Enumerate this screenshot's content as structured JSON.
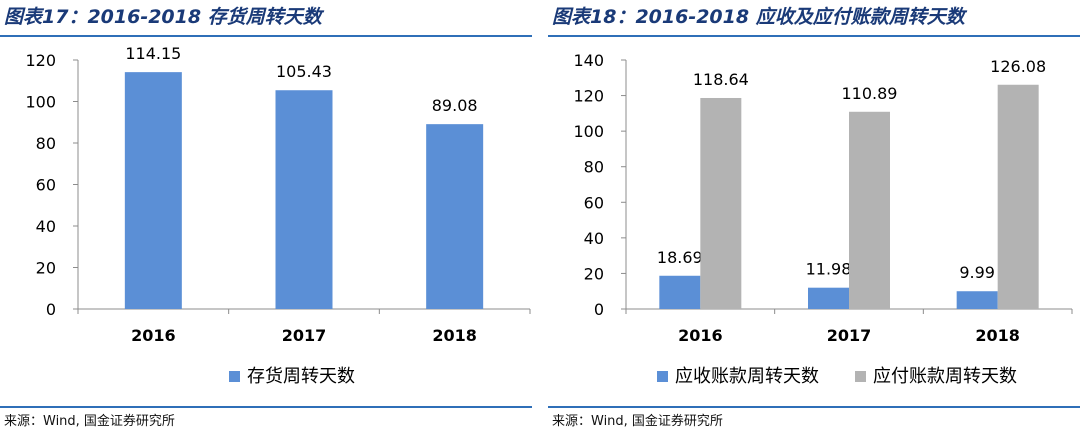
{
  "figures": [
    {
      "title": "图表17：2016-2018 存货周转天数",
      "source": "来源：Wind, 国金证券研究所"
    },
    {
      "title": "图表18：2016-2018 应收及应付账款周转天数",
      "source": "来源：Wind, 国金证券研究所"
    }
  ],
  "chart_data": [
    {
      "type": "bar",
      "categories": [
        "2016",
        "2017",
        "2018"
      ],
      "series": [
        {
          "name": "存货周转天数",
          "values": [
            114.15,
            105.43,
            89.08
          ],
          "color": "#5b8fd6"
        }
      ],
      "ylim": [
        0,
        120
      ],
      "yticks": [
        0,
        20,
        40,
        60,
        80,
        100,
        120
      ],
      "grid": false,
      "legend": "bottom-center",
      "data_labels": true
    },
    {
      "type": "bar",
      "categories": [
        "2016",
        "2017",
        "2018"
      ],
      "series": [
        {
          "name": "应收账款周转天数",
          "values": [
            18.69,
            11.98,
            9.99
          ],
          "color": "#5b8fd6"
        },
        {
          "name": "应付账款周转天数",
          "values": [
            118.64,
            110.89,
            126.08
          ],
          "color": "#b3b3b3"
        }
      ],
      "ylim": [
        0,
        140
      ],
      "yticks": [
        0,
        20,
        40,
        60,
        80,
        100,
        120,
        140
      ],
      "grid": false,
      "legend": "bottom-center",
      "data_labels": true
    }
  ]
}
